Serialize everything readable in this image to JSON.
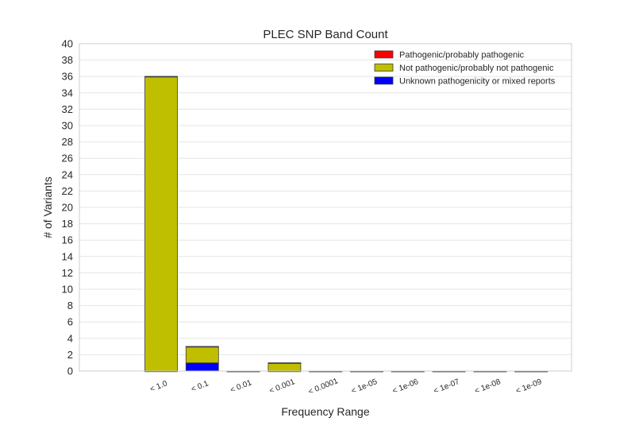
{
  "chart_data": {
    "type": "bar",
    "stacked": true,
    "title": "PLEC SNP Band Count",
    "xlabel": "Frequency Range",
    "ylabel": "# of Variants",
    "categories": [
      "< 1.0",
      "< 0.1",
      "< 0.01",
      "< 0.001",
      "< 0.0001",
      "< 1e-05",
      "< 1e-06",
      "< 1e-07",
      "< 1e-08",
      "< 1e-09"
    ],
    "series": [
      {
        "name": "Unknown pathogenicity or mixed reports",
        "color": "#0000ff",
        "values": [
          0,
          1,
          0,
          0,
          0,
          0,
          0,
          0,
          0,
          0
        ]
      },
      {
        "name": "Not pathogenic/probably not pathogenic",
        "color": "#bfbf00",
        "values": [
          36,
          2,
          0,
          1,
          0,
          0,
          0,
          0,
          0,
          0
        ]
      },
      {
        "name": "Pathogenic/probably pathogenic",
        "color": "#ff0000",
        "values": [
          0,
          0,
          0,
          0,
          0,
          0,
          0,
          0,
          0,
          0
        ]
      }
    ],
    "legend_order": [
      2,
      1,
      0
    ],
    "ylim": [
      0,
      40
    ],
    "yticks": [
      0,
      2,
      4,
      6,
      8,
      10,
      12,
      14,
      16,
      18,
      20,
      22,
      24,
      26,
      28,
      30,
      32,
      34,
      36,
      38,
      40
    ],
    "grid": true,
    "legend_position": "top-right"
  }
}
